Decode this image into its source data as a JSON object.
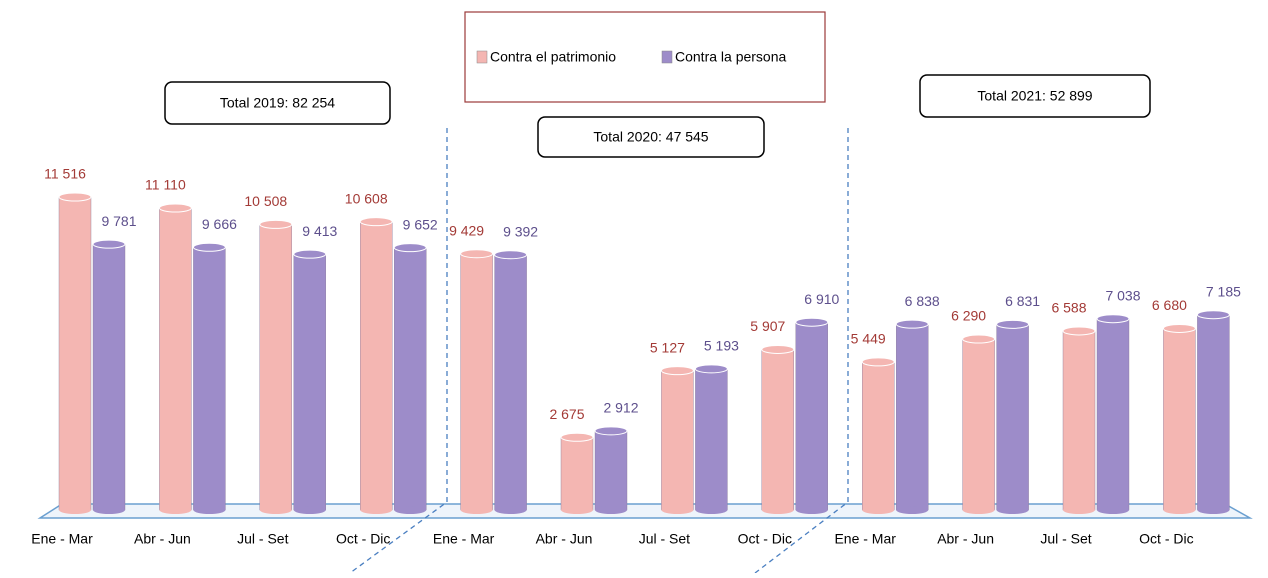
{
  "chart_data": {
    "type": "bar3d",
    "categories": [
      "Ene - Mar",
      "Abr - Jun",
      "Jul - Set",
      "Oct - Dic",
      "Ene - Mar",
      "Abr - Jun",
      "Jul - Set",
      "Oct - Dic",
      "Ene - Mar",
      "Abr - Jun",
      "Jul - Set",
      "Oct - Dic"
    ],
    "series": [
      {
        "name": "Contra el patrimonio",
        "color": "#f4b6b2",
        "label_color": "#a33a36",
        "values": [
          11516,
          11110,
          10508,
          10608,
          9429,
          2675,
          5127,
          5907,
          5449,
          6290,
          6588,
          6680
        ],
        "value_labels": [
          "11 516",
          "11 110",
          "10 508",
          "10 608",
          "9 429",
          "2 675",
          "5 127",
          "5 907",
          "5 449",
          "6 290",
          "6 588",
          "6 680"
        ]
      },
      {
        "name": "Contra la persona",
        "color": "#9d8cc9",
        "label_color": "#5d4f8c",
        "values": [
          9781,
          9666,
          9413,
          9652,
          9392,
          2912,
          5193,
          6910,
          6838,
          6831,
          7038,
          7185
        ],
        "value_labels": [
          "9 781",
          "9 666",
          "9 413",
          "9 652",
          "9 392",
          "2 912",
          "5 193",
          "6 910",
          "6 838",
          "6 831",
          "7 038",
          "7 185"
        ]
      }
    ],
    "annotations": [
      "Total 2019: 82 254",
      "Total 2020: 47 545",
      "Total 2021: 52 899"
    ]
  }
}
